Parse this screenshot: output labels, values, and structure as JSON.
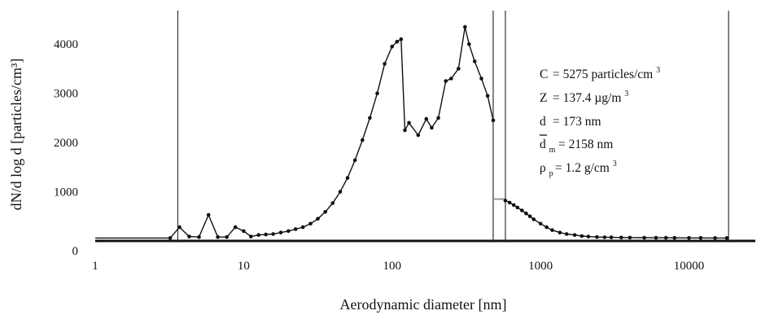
{
  "chart_data": {
    "type": "line",
    "xlabel": "Aerodynamic diameter [nm]",
    "ylabel": "dN/d log d [particles/cm³]",
    "x_scale": "log",
    "xlim": [
      1,
      28000
    ],
    "ylim": [
      0,
      4500
    ],
    "x_ticks": [
      {
        "value": 1,
        "label": "1"
      },
      {
        "value": 10,
        "label": "10"
      },
      {
        "value": 100,
        "label": "100"
      },
      {
        "value": 1000,
        "label": "1000"
      },
      {
        "value": 10000,
        "label": "10000"
      }
    ],
    "y_ticks": [
      {
        "value": 0,
        "label": "0"
      },
      {
        "value": 1000,
        "label": "1000"
      },
      {
        "value": 2000,
        "label": "2000"
      },
      {
        "value": 3000,
        "label": "3000"
      },
      {
        "value": 4000,
        "label": "4000"
      }
    ],
    "vertical_lines": [
      3.6,
      480,
      580,
      18500
    ],
    "bridge": {
      "x": [
        480,
        580
      ],
      "y": [
        850,
        850
      ]
    },
    "series": [
      {
        "x": [
          1,
          3.2,
          3.7,
          4.3,
          5.0,
          5.8,
          6.7,
          7.7,
          8.8,
          10.0,
          11.2,
          12.6,
          14.1,
          15.8,
          17.8,
          20,
          22.4,
          25.1,
          28.2,
          31.6,
          35.5,
          39.8,
          44.7,
          50.1,
          56.2,
          63.1,
          70.8,
          79.4,
          89.1,
          100,
          108,
          115,
          122,
          130,
          150,
          170,
          185,
          205,
          230,
          250,
          280,
          310,
          330,
          360,
          400,
          440,
          480
        ],
        "y": [
          60,
          60,
          280,
          90,
          80,
          530,
          80,
          80,
          280,
          200,
          90,
          120,
          130,
          140,
          170,
          200,
          240,
          280,
          350,
          450,
          590,
          770,
          1000,
          1280,
          1640,
          2050,
          2500,
          3000,
          3600,
          3950,
          4050,
          4100,
          2250,
          2400,
          2150,
          2480,
          2300,
          2500,
          3250,
          3300,
          3500,
          4350,
          4000,
          3650,
          3300,
          2950,
          2450
        ]
      },
      {
        "x": [
          580,
          620,
          660,
          700,
          750,
          800,
          850,
          900,
          1000,
          1100,
          1200,
          1350,
          1500,
          1700,
          1900,
          2100,
          2400,
          2700,
          3000,
          3500,
          4000,
          5000,
          6000,
          7000,
          8000,
          10000,
          12000,
          15000,
          18000
        ],
        "y": [
          820,
          780,
          730,
          680,
          620,
          560,
          500,
          440,
          350,
          280,
          220,
          170,
          140,
          120,
          100,
          90,
          80,
          75,
          72,
          70,
          68,
          66,
          65,
          64,
          63,
          62,
          61,
          60,
          60
        ]
      }
    ]
  },
  "annotations": {
    "c": {
      "symbol": "C",
      "value": "= 5275 particles/cm",
      "sup": "3"
    },
    "z": {
      "symbol": "Z",
      "value": "= 137.4 µg/m",
      "sup": "3"
    },
    "d": {
      "symbol": "d",
      "value": "= 173 nm"
    },
    "dm": {
      "symbol": "d",
      "sub": "m",
      "value": "= 2158 nm"
    },
    "rho": {
      "symbol": "ρ",
      "sub": "p",
      "value": "= 1.2 g/cm",
      "sup": "3"
    }
  }
}
